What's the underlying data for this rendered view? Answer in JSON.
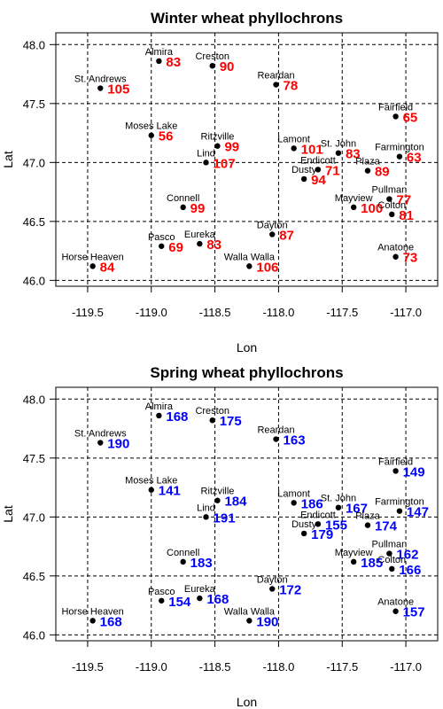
{
  "chart_data": [
    {
      "type": "scatter",
      "title": "Winter wheat phyllochrons",
      "xlabel": "Lon",
      "ylabel": "Lat",
      "xlim": [
        -119.75,
        -116.75
      ],
      "ylim": [
        45.95,
        48.1
      ],
      "xticks": [
        -119.5,
        -119.0,
        -118.5,
        -118.0,
        -117.5,
        -117.0
      ],
      "xtick_labels": [
        "-119.5",
        "-119.0",
        "-118.5",
        "-118.0",
        "-117.5",
        "-117.0"
      ],
      "yticks": [
        46.0,
        46.5,
        47.0,
        47.5,
        48.0
      ],
      "ytick_labels": [
        "46.0",
        "46.5",
        "47.0",
        "47.5",
        "48.0"
      ],
      "grid": true,
      "value_color": "#ff0000",
      "points": [
        {
          "name": "Almira",
          "lon": -118.94,
          "lat": 47.86,
          "value": "83"
        },
        {
          "name": "Creston",
          "lon": -118.52,
          "lat": 47.82,
          "value": "90"
        },
        {
          "name": "St. Andrews",
          "lon": -119.4,
          "lat": 47.63,
          "value": "105"
        },
        {
          "name": "Reardan",
          "lon": -118.02,
          "lat": 47.66,
          "value": "78"
        },
        {
          "name": "Fairfield",
          "lon": -117.08,
          "lat": 47.39,
          "value": "65"
        },
        {
          "name": "Moses Lake",
          "lon": -119.0,
          "lat": 47.23,
          "value": "56"
        },
        {
          "name": "Ritzville",
          "lon": -118.48,
          "lat": 47.14,
          "value": "99"
        },
        {
          "name": "Lind",
          "lon": -118.57,
          "lat": 47.0,
          "value": "107"
        },
        {
          "name": "Lamont",
          "lon": -117.88,
          "lat": 47.12,
          "value": "101"
        },
        {
          "name": "St. John",
          "lon": -117.53,
          "lat": 47.08,
          "value": "83"
        },
        {
          "name": "Farmington",
          "lon": -117.05,
          "lat": 47.05,
          "value": "63"
        },
        {
          "name": "Endicott",
          "lon": -117.69,
          "lat": 46.94,
          "value": "71"
        },
        {
          "name": "Plaza",
          "lon": -117.3,
          "lat": 46.93,
          "value": "89"
        },
        {
          "name": "Dusty",
          "lon": -117.8,
          "lat": 46.86,
          "value": "94"
        },
        {
          "name": "Connell",
          "lon": -118.75,
          "lat": 46.62,
          "value": "99"
        },
        {
          "name": "Pullman",
          "lon": -117.13,
          "lat": 46.69,
          "value": "77"
        },
        {
          "name": "Mayview",
          "lon": -117.41,
          "lat": 46.62,
          "value": "100"
        },
        {
          "name": "Colton",
          "lon": -117.11,
          "lat": 46.56,
          "value": "81"
        },
        {
          "name": "Dayton",
          "lon": -118.05,
          "lat": 46.39,
          "value": "87"
        },
        {
          "name": "Pasco",
          "lon": -118.92,
          "lat": 46.29,
          "value": "69"
        },
        {
          "name": "Eureka",
          "lon": -118.62,
          "lat": 46.31,
          "value": "83"
        },
        {
          "name": "Walla Walla",
          "lon": -118.23,
          "lat": 46.12,
          "value": "106"
        },
        {
          "name": "Horse Heaven",
          "lon": -119.46,
          "lat": 46.12,
          "value": "84"
        },
        {
          "name": "Anatone",
          "lon": -117.08,
          "lat": 46.2,
          "value": "73"
        }
      ]
    },
    {
      "type": "scatter",
      "title": "Spring wheat phyllochrons",
      "xlabel": "Lon",
      "ylabel": "Lat",
      "xlim": [
        -119.75,
        -116.75
      ],
      "ylim": [
        45.95,
        48.1
      ],
      "xticks": [
        -119.5,
        -119.0,
        -118.5,
        -118.0,
        -117.5,
        -117.0
      ],
      "xtick_labels": [
        "-119.5",
        "-119.0",
        "-118.5",
        "-118.0",
        "-117.5",
        "-117.0"
      ],
      "yticks": [
        46.0,
        46.5,
        47.0,
        47.5,
        48.0
      ],
      "ytick_labels": [
        "46.0",
        "46.5",
        "47.0",
        "47.5",
        "48.0"
      ],
      "grid": true,
      "value_color": "#0000ff",
      "points": [
        {
          "name": "Almira",
          "lon": -118.94,
          "lat": 47.86,
          "value": "168"
        },
        {
          "name": "Creston",
          "lon": -118.52,
          "lat": 47.82,
          "value": "175"
        },
        {
          "name": "St. Andrews",
          "lon": -119.4,
          "lat": 47.63,
          "value": "190"
        },
        {
          "name": "Reardan",
          "lon": -118.02,
          "lat": 47.66,
          "value": "163"
        },
        {
          "name": "Fairfield",
          "lon": -117.08,
          "lat": 47.39,
          "value": "149"
        },
        {
          "name": "Moses Lake",
          "lon": -119.0,
          "lat": 47.23,
          "value": "141"
        },
        {
          "name": "Ritzville",
          "lon": -118.48,
          "lat": 47.14,
          "value": "184"
        },
        {
          "name": "Lind",
          "lon": -118.57,
          "lat": 47.0,
          "value": "191"
        },
        {
          "name": "Lamont",
          "lon": -117.88,
          "lat": 47.12,
          "value": "186"
        },
        {
          "name": "St. John",
          "lon": -117.53,
          "lat": 47.08,
          "value": "167"
        },
        {
          "name": "Farmington",
          "lon": -117.05,
          "lat": 47.05,
          "value": "147"
        },
        {
          "name": "Endicott",
          "lon": -117.69,
          "lat": 46.94,
          "value": "155"
        },
        {
          "name": "Plaza",
          "lon": -117.3,
          "lat": 46.93,
          "value": "174"
        },
        {
          "name": "Dusty",
          "lon": -117.8,
          "lat": 46.86,
          "value": "179"
        },
        {
          "name": "Connell",
          "lon": -118.75,
          "lat": 46.62,
          "value": "183"
        },
        {
          "name": "Pullman",
          "lon": -117.13,
          "lat": 46.69,
          "value": "162"
        },
        {
          "name": "Mayview",
          "lon": -117.41,
          "lat": 46.62,
          "value": "185"
        },
        {
          "name": "Colton",
          "lon": -117.11,
          "lat": 46.56,
          "value": "166"
        },
        {
          "name": "Dayton",
          "lon": -118.05,
          "lat": 46.39,
          "value": "172"
        },
        {
          "name": "Pasco",
          "lon": -118.92,
          "lat": 46.29,
          "value": "154"
        },
        {
          "name": "Eureka",
          "lon": -118.62,
          "lat": 46.31,
          "value": "168"
        },
        {
          "name": "Walla Walla",
          "lon": -118.23,
          "lat": 46.12,
          "value": "190"
        },
        {
          "name": "Horse Heaven",
          "lon": -119.46,
          "lat": 46.12,
          "value": "168"
        },
        {
          "name": "Anatone",
          "lon": -117.08,
          "lat": 46.2,
          "value": "157"
        }
      ]
    }
  ]
}
